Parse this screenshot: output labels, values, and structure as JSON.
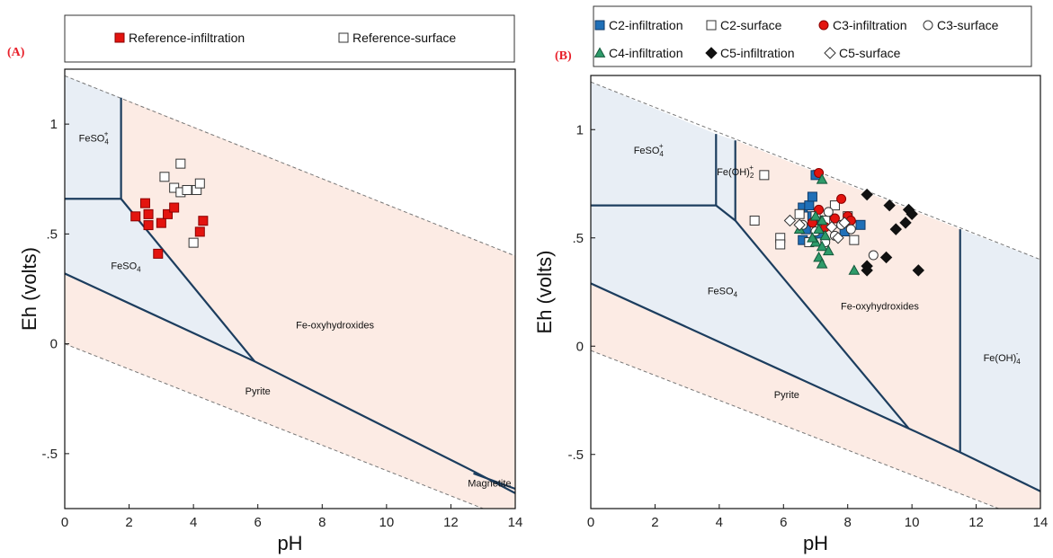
{
  "chart_data": [
    {
      "type": "scatter",
      "panel_label": "(A)",
      "xlabel": "pH",
      "ylabel": "Eh (volts)",
      "xlim": [
        0,
        14
      ],
      "ylim": [
        -0.75,
        1.25
      ],
      "xticks": [
        0,
        2,
        4,
        6,
        8,
        10,
        12,
        14
      ],
      "yticks": [
        {
          "v": -0.5,
          "label": "-.5"
        },
        {
          "v": 0,
          "label": "0"
        },
        {
          "v": 0.5,
          "label": ".5"
        },
        {
          "v": 1,
          "label": "1"
        }
      ],
      "fields": [
        {
          "name": "FeSO4+",
          "base": "FeSO",
          "sub": "4",
          "sup": "+",
          "x": 0.9,
          "y": 0.92
        },
        {
          "name": "FeSO4",
          "base": "FeSO",
          "sub": "4",
          "sup": "",
          "x": 1.9,
          "y": 0.34
        },
        {
          "name": "Fe-oxyhydroxides",
          "base": "Fe-oxyhydroxides",
          "sub": "",
          "sup": "",
          "x": 8.4,
          "y": 0.07
        },
        {
          "name": "Pyrite",
          "base": "Pyrite",
          "sub": "",
          "sup": "",
          "x": 6.0,
          "y": -0.23
        },
        {
          "name": "Magnetite",
          "base": "Magnetite",
          "sub": "",
          "sup": "",
          "x": 13.2,
          "y": -0.65
        }
      ],
      "series": [
        {
          "name": "Reference-infiltration",
          "marker": "square",
          "fill": "#e3140f",
          "stroke": "#8a0000",
          "points": [
            [
              2.2,
              0.58
            ],
            [
              2.5,
              0.64
            ],
            [
              2.6,
              0.59
            ],
            [
              2.6,
              0.54
            ],
            [
              3.0,
              0.55
            ],
            [
              3.2,
              0.59
            ],
            [
              3.4,
              0.62
            ],
            [
              2.9,
              0.41
            ],
            [
              4.3,
              0.56
            ],
            [
              4.2,
              0.51
            ]
          ]
        },
        {
          "name": "Reference-surface",
          "marker": "square",
          "fill": "#ffffff",
          "stroke": "#333333",
          "points": [
            [
              3.1,
              0.76
            ],
            [
              3.6,
              0.82
            ],
            [
              3.4,
              0.71
            ],
            [
              3.6,
              0.69
            ],
            [
              3.8,
              0.7
            ],
            [
              4.1,
              0.7
            ],
            [
              4.2,
              0.73
            ],
            [
              4.0,
              0.46
            ]
          ]
        }
      ]
    },
    {
      "type": "scatter",
      "panel_label": "(B)",
      "xlabel": "pH",
      "ylabel": "Eh (volts)",
      "xlim": [
        0,
        14
      ],
      "ylim": [
        -0.75,
        1.25
      ],
      "xticks": [
        0,
        2,
        4,
        6,
        8,
        10,
        12,
        14
      ],
      "yticks": [
        {
          "v": -0.5,
          "label": "-.5"
        },
        {
          "v": 0,
          "label": "0"
        },
        {
          "v": 0.5,
          "label": ".5"
        },
        {
          "v": 1,
          "label": "1"
        }
      ],
      "fields": [
        {
          "name": "FeSO4+",
          "base": "FeSO",
          "sub": "4",
          "sup": "+",
          "x": 1.8,
          "y": 0.89
        },
        {
          "name": "Fe(OH)2+",
          "base": "Fe(OH)",
          "sub": "2",
          "sup": "+",
          "x": 4.5,
          "y": 0.79
        },
        {
          "name": "FeSO4",
          "base": "FeSO",
          "sub": "4",
          "sup": "",
          "x": 4.1,
          "y": 0.24
        },
        {
          "name": "Fe-oxyhydroxides",
          "base": "Fe-oxyhydroxides",
          "sub": "",
          "sup": "",
          "x": 9.0,
          "y": 0.17
        },
        {
          "name": "Fe(OH)4-",
          "base": "Fe(OH)",
          "sub": "4",
          "sup": "-",
          "x": 12.8,
          "y": -0.07
        },
        {
          "name": "Pyrite",
          "base": "Pyrite",
          "sub": "",
          "sup": "",
          "x": 6.1,
          "y": -0.24
        }
      ],
      "series": [
        {
          "name": "C2-infiltration",
          "marker": "square",
          "fill": "#1f6fb7",
          "stroke": "#103a66",
          "points": [
            [
              6.6,
              0.64
            ],
            [
              6.8,
              0.65
            ],
            [
              6.9,
              0.69
            ],
            [
              6.9,
              0.6
            ],
            [
              7.0,
              0.79
            ],
            [
              6.7,
              0.54
            ],
            [
              6.6,
              0.49
            ],
            [
              7.2,
              0.58
            ],
            [
              7.9,
              0.53
            ],
            [
              8.4,
              0.56
            ],
            [
              7.1,
              0.52
            ]
          ]
        },
        {
          "name": "C2-surface",
          "marker": "square",
          "fill": "#ffffff",
          "stroke": "#333333",
          "points": [
            [
              5.4,
              0.79
            ],
            [
              5.1,
              0.58
            ],
            [
              5.9,
              0.5
            ],
            [
              5.9,
              0.47
            ],
            [
              6.5,
              0.61
            ],
            [
              7.6,
              0.65
            ],
            [
              8.2,
              0.49
            ],
            [
              6.8,
              0.48
            ],
            [
              7.0,
              0.6
            ],
            [
              7.3,
              0.58
            ],
            [
              8.0,
              0.6
            ]
          ]
        },
        {
          "name": "C3-infiltration",
          "marker": "circle",
          "fill": "#e3140f",
          "stroke": "#8a0000",
          "points": [
            [
              7.1,
              0.8
            ],
            [
              7.8,
              0.68
            ],
            [
              7.1,
              0.63
            ],
            [
              7.6,
              0.59
            ],
            [
              8.0,
              0.6
            ],
            [
              8.1,
              0.58
            ],
            [
              6.9,
              0.57
            ],
            [
              7.3,
              0.55
            ]
          ]
        },
        {
          "name": "C3-surface",
          "marker": "circle",
          "fill": "#ffffff",
          "stroke": "#333333",
          "points": [
            [
              7.4,
              0.62
            ],
            [
              7.0,
              0.53
            ],
            [
              7.6,
              0.51
            ],
            [
              7.8,
              0.56
            ],
            [
              7.3,
              0.48
            ],
            [
              8.1,
              0.54
            ],
            [
              8.8,
              0.42
            ],
            [
              6.6,
              0.56
            ]
          ]
        },
        {
          "name": "C4-infiltration",
          "marker": "triangle",
          "fill": "#2e9b6a",
          "stroke": "#13573a",
          "points": [
            [
              7.2,
              0.77
            ],
            [
              7.0,
              0.6
            ],
            [
              7.2,
              0.58
            ],
            [
              7.1,
              0.54
            ],
            [
              6.5,
              0.54
            ],
            [
              7.0,
              0.48
            ],
            [
              7.2,
              0.46
            ],
            [
              7.4,
              0.44
            ],
            [
              7.1,
              0.41
            ],
            [
              7.2,
              0.38
            ],
            [
              8.2,
              0.35
            ],
            [
              6.9,
              0.5
            ],
            [
              7.3,
              0.51
            ]
          ]
        },
        {
          "name": "C5-infiltration",
          "marker": "diamond",
          "fill": "#111111",
          "stroke": "#111111",
          "points": [
            [
              8.6,
              0.7
            ],
            [
              9.3,
              0.65
            ],
            [
              9.9,
              0.63
            ],
            [
              10.0,
              0.61
            ],
            [
              9.8,
              0.57
            ],
            [
              9.5,
              0.54
            ],
            [
              8.6,
              0.37
            ],
            [
              8.6,
              0.35
            ],
            [
              9.2,
              0.41
            ],
            [
              10.2,
              0.35
            ]
          ]
        },
        {
          "name": "C5-surface",
          "marker": "diamond",
          "fill": "#ffffff",
          "stroke": "#333333",
          "points": [
            [
              6.2,
              0.58
            ],
            [
              6.5,
              0.56
            ],
            [
              7.5,
              0.55
            ],
            [
              7.7,
              0.5
            ],
            [
              7.9,
              0.57
            ]
          ]
        }
      ]
    }
  ]
}
